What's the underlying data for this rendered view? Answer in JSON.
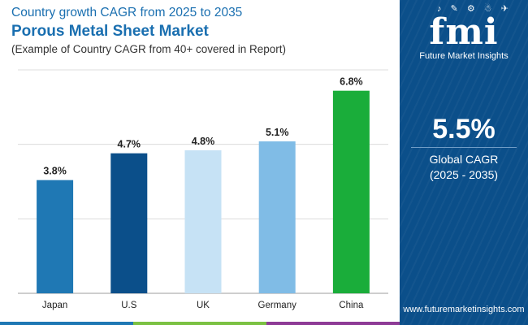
{
  "header": {
    "subtitle_top": "Country growth CAGR from 2025 to 2035",
    "title": "Porous Metal Sheet Market",
    "note": "(Example of Country CAGR from 40+ covered in Report)"
  },
  "chart_data": {
    "type": "bar",
    "categories": [
      "Japan",
      "U.S",
      "UK",
      "Germany",
      "China"
    ],
    "values": [
      3.8,
      4.7,
      4.8,
      5.1,
      6.8
    ],
    "value_labels": [
      "3.8%",
      "4.7%",
      "4.8%",
      "5.1%",
      "6.8%"
    ],
    "colors": [
      "#1f78b4",
      "#0b4f8a",
      "#c6e2f5",
      "#80bce6",
      "#1aad3a"
    ],
    "ylim": [
      0,
      7.5
    ],
    "grid": true,
    "y_gridlines": [
      0,
      2.5,
      5,
      7.5
    ]
  },
  "sidebar": {
    "logo_text": "fmi",
    "logo_icons": "♪ ✎ ⚙ ☃ ✈",
    "brand": "Future Market Insights",
    "global_cagr_value": "5.5%",
    "global_cagr_label": "Global CAGR",
    "global_cagr_period": "(2025 - 2035)",
    "website": "www.futuremarketinsights.com",
    "background_color": "#0b4f8a"
  },
  "bottom_bar_colors": [
    "#1f78b4",
    "#7bc142",
    "#8e3b96"
  ]
}
